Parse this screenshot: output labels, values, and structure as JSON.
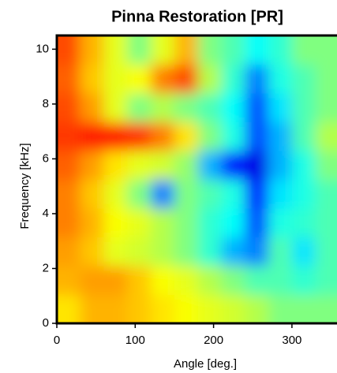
{
  "chart_data": {
    "type": "heatmap",
    "title": "Pinna Restoration [PR]",
    "x_label": "Angle [deg.]",
    "y_label": "Frequency [kHz]",
    "xlim": [
      0,
      360
    ],
    "ylim": [
      0,
      10.5
    ],
    "xticks": [
      0,
      100,
      200,
      300
    ],
    "yticks": [
      0,
      2,
      4,
      6,
      8,
      10
    ],
    "colormap": "jet",
    "z": [
      [
        0.65,
        0.7,
        0.7,
        0.68,
        0.65,
        0.62,
        0.6,
        0.58,
        0.55,
        0.5,
        0.5,
        0.5
      ],
      [
        0.7,
        0.72,
        0.72,
        0.68,
        0.62,
        0.6,
        0.55,
        0.5,
        0.45,
        0.45,
        0.42,
        0.45
      ],
      [
        0.72,
        0.68,
        0.6,
        0.58,
        0.55,
        0.5,
        0.42,
        0.3,
        0.25,
        0.45,
        0.35,
        0.45
      ],
      [
        0.75,
        0.7,
        0.62,
        0.6,
        0.55,
        0.5,
        0.42,
        0.38,
        0.2,
        0.4,
        0.42,
        0.45
      ],
      [
        0.75,
        0.68,
        0.6,
        0.5,
        0.25,
        0.5,
        0.45,
        0.4,
        0.15,
        0.35,
        0.4,
        0.45
      ],
      [
        0.78,
        0.72,
        0.65,
        0.6,
        0.58,
        0.52,
        0.3,
        0.15,
        0.1,
        0.3,
        0.4,
        0.5
      ],
      [
        0.82,
        0.85,
        0.85,
        0.82,
        0.75,
        0.65,
        0.5,
        0.4,
        0.2,
        0.3,
        0.45,
        0.55
      ],
      [
        0.8,
        0.72,
        0.6,
        0.5,
        0.55,
        0.5,
        0.45,
        0.38,
        0.2,
        0.35,
        0.45,
        0.5
      ],
      [
        0.78,
        0.68,
        0.6,
        0.62,
        0.75,
        0.8,
        0.55,
        0.42,
        0.25,
        0.4,
        0.45,
        0.5
      ],
      [
        0.8,
        0.7,
        0.6,
        0.5,
        0.6,
        0.7,
        0.5,
        0.45,
        0.38,
        0.42,
        0.5,
        0.5
      ]
    ]
  }
}
